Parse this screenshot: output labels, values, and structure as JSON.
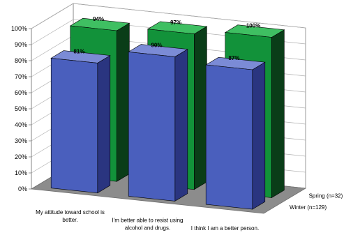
{
  "chart_data": {
    "type": "bar",
    "subtype": "3d-clustered-depth",
    "title": "",
    "xlabel": "",
    "ylabel": "",
    "ylim": [
      0,
      100
    ],
    "y_ticks": [
      "0%",
      "10%",
      "20%",
      "30%",
      "40%",
      "50%",
      "60%",
      "70%",
      "80%",
      "90%",
      "100%"
    ],
    "grid": true,
    "categories": [
      "My attitude toward school is better.",
      "I'm better able to resist using alcohol and drugs.",
      "I think I am a better person."
    ],
    "category_lines": [
      [
        "My attitude toward school is",
        "better."
      ],
      [
        "I'm better able to resist using",
        "alcohol and drugs."
      ],
      [
        "I think I am a better person."
      ]
    ],
    "series": [
      {
        "name": "Winter (n=129)",
        "values": [
          81,
          90,
          87
        ],
        "labels": [
          "81%",
          "90%",
          "87%"
        ],
        "color": "#4a5fbd",
        "color_side": "#2a3580",
        "color_top": "#7b8bd6"
      },
      {
        "name": "Spring (n=32)",
        "values": [
          94,
          97,
          100
        ],
        "labels": [
          "94%",
          "97%",
          "100%"
        ],
        "color": "#12923a",
        "color_side": "#0a3d18",
        "color_top": "#3fbf62"
      }
    ],
    "colors": {
      "floor": "#8c8c8c",
      "wall": "#ffffff",
      "grid": "#b0b0b0",
      "axis": "#808080"
    }
  }
}
